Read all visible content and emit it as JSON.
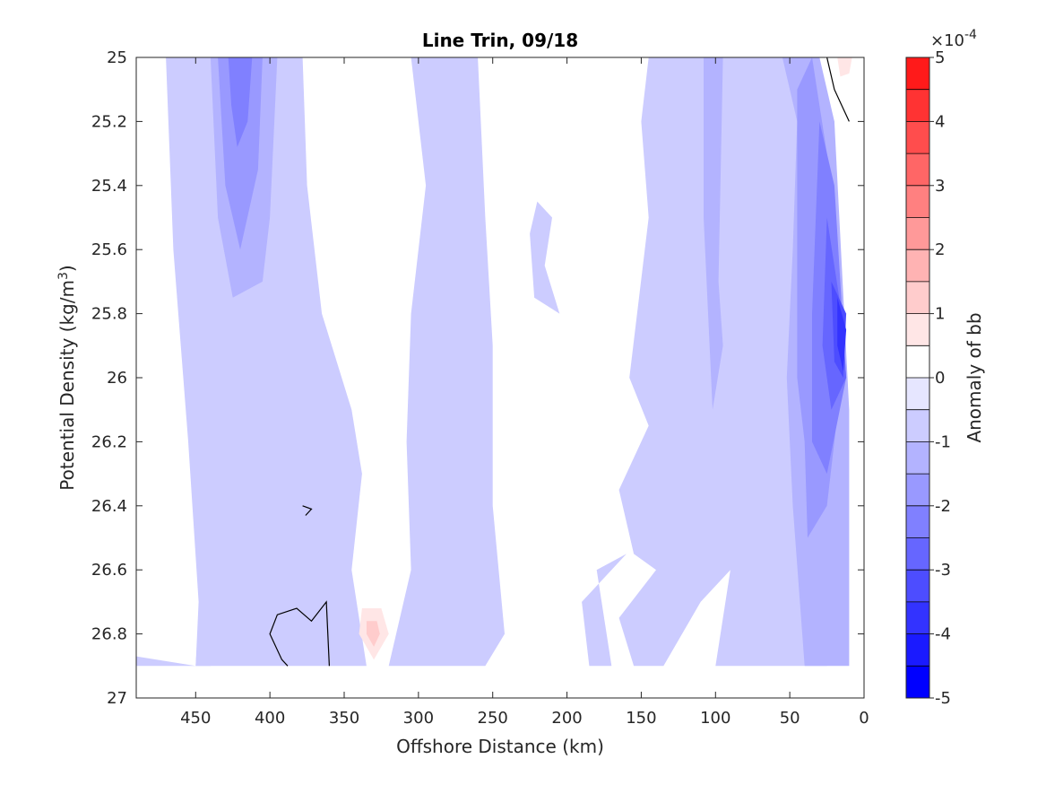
{
  "chart_data": {
    "type": "contour",
    "title": "Line Trin, 09/18",
    "xlabel": "Offshore Distance (km)",
    "ylabel_main": "Potential Density (kg/m",
    "ylabel_sup": "3",
    "ylabel_close": ")",
    "x_axis_reversed": true,
    "xlim": [
      0,
      490
    ],
    "ylim": [
      25,
      27
    ],
    "y_axis_reversed": true,
    "xticks": [
      450,
      400,
      350,
      300,
      250,
      200,
      150,
      100,
      50,
      0
    ],
    "xtick_labels": [
      "450",
      "400",
      "350",
      "300",
      "250",
      "200",
      "150",
      "100",
      "50",
      "0"
    ],
    "yticks": [
      25,
      25.2,
      25.4,
      25.6,
      25.8,
      26,
      26.2,
      26.4,
      26.6,
      26.8,
      27
    ],
    "ytick_labels": [
      "25",
      "25.2",
      "25.4",
      "25.6",
      "25.8",
      "26",
      "26.2",
      "26.4",
      "26.6",
      "26.8",
      "27"
    ],
    "colorbar": {
      "label": "Anomaly of bb",
      "exponent_base": "×10",
      "exponent_power": "-4",
      "range": [
        -5,
        5
      ],
      "levels": [
        -5,
        -4.5,
        -4,
        -3.5,
        -3,
        -2.5,
        -2,
        -1.5,
        -1,
        -0.5,
        0,
        0.5,
        1,
        1.5,
        2,
        2.5,
        3,
        3.5,
        4,
        4.5,
        5
      ],
      "ticks": [
        -5,
        -4,
        -3,
        -2,
        -1,
        0,
        1,
        2,
        3,
        4,
        5
      ],
      "tick_labels": [
        "-5",
        "-4",
        "-3",
        "-2",
        "-1",
        "0",
        "1",
        "2",
        "3",
        "4",
        "5"
      ],
      "colors": [
        "#0000ff",
        "#1a1aff",
        "#3333ff",
        "#4d4dff",
        "#6666ff",
        "#8080ff",
        "#9999ff",
        "#b3b3ff",
        "#ccccff",
        "#e6e6ff",
        "#ffffff",
        "#ffffff",
        "#ffe6e6",
        "#ffcccc",
        "#ffb3b3",
        "#ff9999",
        "#ff8080",
        "#ff6666",
        "#ff4d4d",
        "#ff3333",
        "#ff1a1a",
        "#ff0000"
      ]
    },
    "data_extent": {
      "x_min": 10,
      "x_max": 490,
      "y_min": 25,
      "y_max": 26.9
    },
    "regions": [
      {
        "name": "west-weak-negative-band",
        "value": -0.75,
        "poly": [
          [
            455,
            25
          ],
          [
            378,
            25
          ],
          [
            375,
            25.4
          ],
          [
            365,
            25.8
          ],
          [
            345,
            26.1
          ],
          [
            338,
            26.3
          ],
          [
            345,
            26.6
          ],
          [
            335,
            26.9
          ],
          [
            490,
            26.9
          ],
          [
            490,
            26.87
          ],
          [
            450,
            26.9
          ],
          [
            442,
            26.3
          ],
          [
            445,
            25.8
          ]
        ]
      },
      {
        "name": "west-band-left-strip",
        "value": -0.75,
        "poly": [
          [
            450,
            25.05
          ],
          [
            455,
            25
          ],
          [
            470,
            25
          ],
          [
            465,
            25.6
          ],
          [
            455,
            26.2
          ],
          [
            448,
            26.7
          ],
          [
            450,
            26.9
          ],
          [
            440,
            26.9
          ],
          [
            440,
            25.6
          ]
        ]
      },
      {
        "name": "west-moderate-negative",
        "value": -1.25,
        "poly": [
          [
            440,
            25
          ],
          [
            395,
            25
          ],
          [
            400,
            25.5
          ],
          [
            405,
            25.7
          ],
          [
            425,
            25.75
          ],
          [
            435,
            25.5
          ]
        ]
      },
      {
        "name": "west-stronger-negative",
        "value": -1.75,
        "poly": [
          [
            435,
            25
          ],
          [
            405,
            25
          ],
          [
            408,
            25.35
          ],
          [
            420,
            25.6
          ],
          [
            430,
            25.4
          ]
        ]
      },
      {
        "name": "west-core-negative",
        "value": -2.25,
        "poly": [
          [
            428,
            25
          ],
          [
            412,
            25
          ],
          [
            415,
            25.2
          ],
          [
            422,
            25.28
          ],
          [
            426,
            25.15
          ]
        ]
      },
      {
        "name": "mid-weak-negative-band",
        "value": -0.75,
        "poly": [
          [
            305,
            25
          ],
          [
            260,
            25
          ],
          [
            255,
            25.5
          ],
          [
            250,
            25.9
          ],
          [
            250,
            26.4
          ],
          [
            242,
            26.8
          ],
          [
            255,
            26.9
          ],
          [
            320,
            26.9
          ],
          [
            305,
            26.6
          ],
          [
            308,
            26.2
          ],
          [
            305,
            25.8
          ],
          [
            295,
            25.4
          ]
        ]
      },
      {
        "name": "mid-small-patch-upper",
        "value": -0.75,
        "poly": [
          [
            220,
            25.45
          ],
          [
            210,
            25.5
          ],
          [
            215,
            25.65
          ],
          [
            205,
            25.8
          ],
          [
            222,
            25.75
          ],
          [
            225,
            25.55
          ]
        ]
      },
      {
        "name": "mid-small-patch-lower",
        "value": -0.75,
        "poly": [
          [
            298,
            26.75
          ],
          [
            285,
            26.82
          ],
          [
            290,
            26.85
          ]
        ]
      },
      {
        "name": "east-weak-negative-band",
        "value": -0.75,
        "poly": [
          [
            145,
            25
          ],
          [
            40,
            25
          ],
          [
            20,
            25.2
          ],
          [
            15,
            26
          ],
          [
            30,
            26.4
          ],
          [
            25,
            26.9
          ],
          [
            100,
            26.9
          ],
          [
            90,
            26.6
          ],
          [
            110,
            26.7
          ],
          [
            135,
            26.9
          ],
          [
            155,
            26.9
          ],
          [
            165,
            26.75
          ],
          [
            140,
            26.6
          ],
          [
            155,
            26.55
          ],
          [
            165,
            26.35
          ],
          [
            145,
            26.15
          ],
          [
            158,
            26
          ],
          [
            145,
            25.5
          ],
          [
            150,
            25.2
          ]
        ]
      },
      {
        "name": "east-weak-negative-left-patch",
        "value": -0.75,
        "poly": [
          [
            160,
            26.55
          ],
          [
            180,
            26.6
          ],
          [
            170,
            26.9
          ],
          [
            185,
            26.9
          ],
          [
            190,
            26.7
          ]
        ]
      },
      {
        "name": "east-moderate-negative",
        "value": -1.25,
        "poly": [
          [
            108,
            25
          ],
          [
            95,
            25
          ],
          [
            98,
            25.7
          ],
          [
            95,
            25.9
          ],
          [
            102,
            26.1
          ],
          [
            108,
            25.5
          ]
        ]
      },
      {
        "name": "east-coastal-negative-1",
        "value": -1.25,
        "poly": [
          [
            55,
            25
          ],
          [
            45,
            25.2
          ],
          [
            48,
            25.6
          ],
          [
            52,
            26
          ],
          [
            48,
            26.4
          ],
          [
            40,
            26.9
          ],
          [
            10,
            26.9
          ],
          [
            10,
            26.1
          ],
          [
            20,
            25.2
          ],
          [
            30,
            25
          ]
        ]
      },
      {
        "name": "east-coastal-negative-2",
        "value": -1.75,
        "poly": [
          [
            45,
            25.1
          ],
          [
            35,
            25
          ],
          [
            25,
            25.3
          ],
          [
            15,
            26
          ],
          [
            25,
            26.4
          ],
          [
            38,
            26.5
          ],
          [
            40,
            26.2
          ],
          [
            45,
            26
          ]
        ]
      },
      {
        "name": "east-coastal-negative-3",
        "value": -2.25,
        "poly": [
          [
            30,
            25.2
          ],
          [
            20,
            25.4
          ],
          [
            12,
            26
          ],
          [
            25,
            26.3
          ],
          [
            35,
            26.2
          ],
          [
            35,
            25.8
          ]
        ]
      },
      {
        "name": "east-coastal-negative-4",
        "value": -2.75,
        "poly": [
          [
            25,
            25.5
          ],
          [
            15,
            25.8
          ],
          [
            12,
            26
          ],
          [
            22,
            26.1
          ],
          [
            28,
            25.9
          ]
        ]
      },
      {
        "name": "east-coastal-negative-5",
        "value": -3.25,
        "poly": [
          [
            22,
            25.7
          ],
          [
            12,
            25.8
          ],
          [
            14,
            26
          ],
          [
            20,
            25.95
          ]
        ]
      },
      {
        "name": "east-coastal-core",
        "value": -3.75,
        "poly": [
          [
            18,
            25.75
          ],
          [
            12,
            25.85
          ],
          [
            14,
            25.98
          ],
          [
            18,
            25.9
          ]
        ]
      },
      {
        "name": "south-positive-anomaly",
        "value": 0.75,
        "poly": [
          [
            338,
            26.72
          ],
          [
            325,
            26.72
          ],
          [
            320,
            26.8
          ],
          [
            330,
            26.88
          ],
          [
            340,
            26.8
          ]
        ]
      },
      {
        "name": "south-positive-core",
        "value": 1.25,
        "poly": [
          [
            335,
            26.76
          ],
          [
            328,
            26.76
          ],
          [
            326,
            26.8
          ],
          [
            330,
            26.84
          ],
          [
            335,
            26.8
          ]
        ]
      },
      {
        "name": "northeast-positive-anomaly",
        "value": 0.75,
        "poly": [
          [
            18,
            25
          ],
          [
            8,
            25
          ],
          [
            10,
            25.05
          ],
          [
            16,
            25.06
          ]
        ]
      }
    ],
    "zero_contours": [
      [
        [
          360,
          26.9
        ],
        [
          362,
          26.7
        ],
        [
          372,
          26.76
        ],
        [
          382,
          26.72
        ],
        [
          395,
          26.74
        ],
        [
          400,
          26.8
        ],
        [
          392,
          26.88
        ],
        [
          388,
          26.9
        ]
      ],
      [
        [
          378,
          26.4
        ],
        [
          372,
          26.41
        ],
        [
          376,
          26.43
        ]
      ],
      [
        [
          25,
          25
        ],
        [
          20,
          25.1
        ],
        [
          15,
          25.15
        ],
        [
          10,
          25.2
        ]
      ]
    ]
  }
}
